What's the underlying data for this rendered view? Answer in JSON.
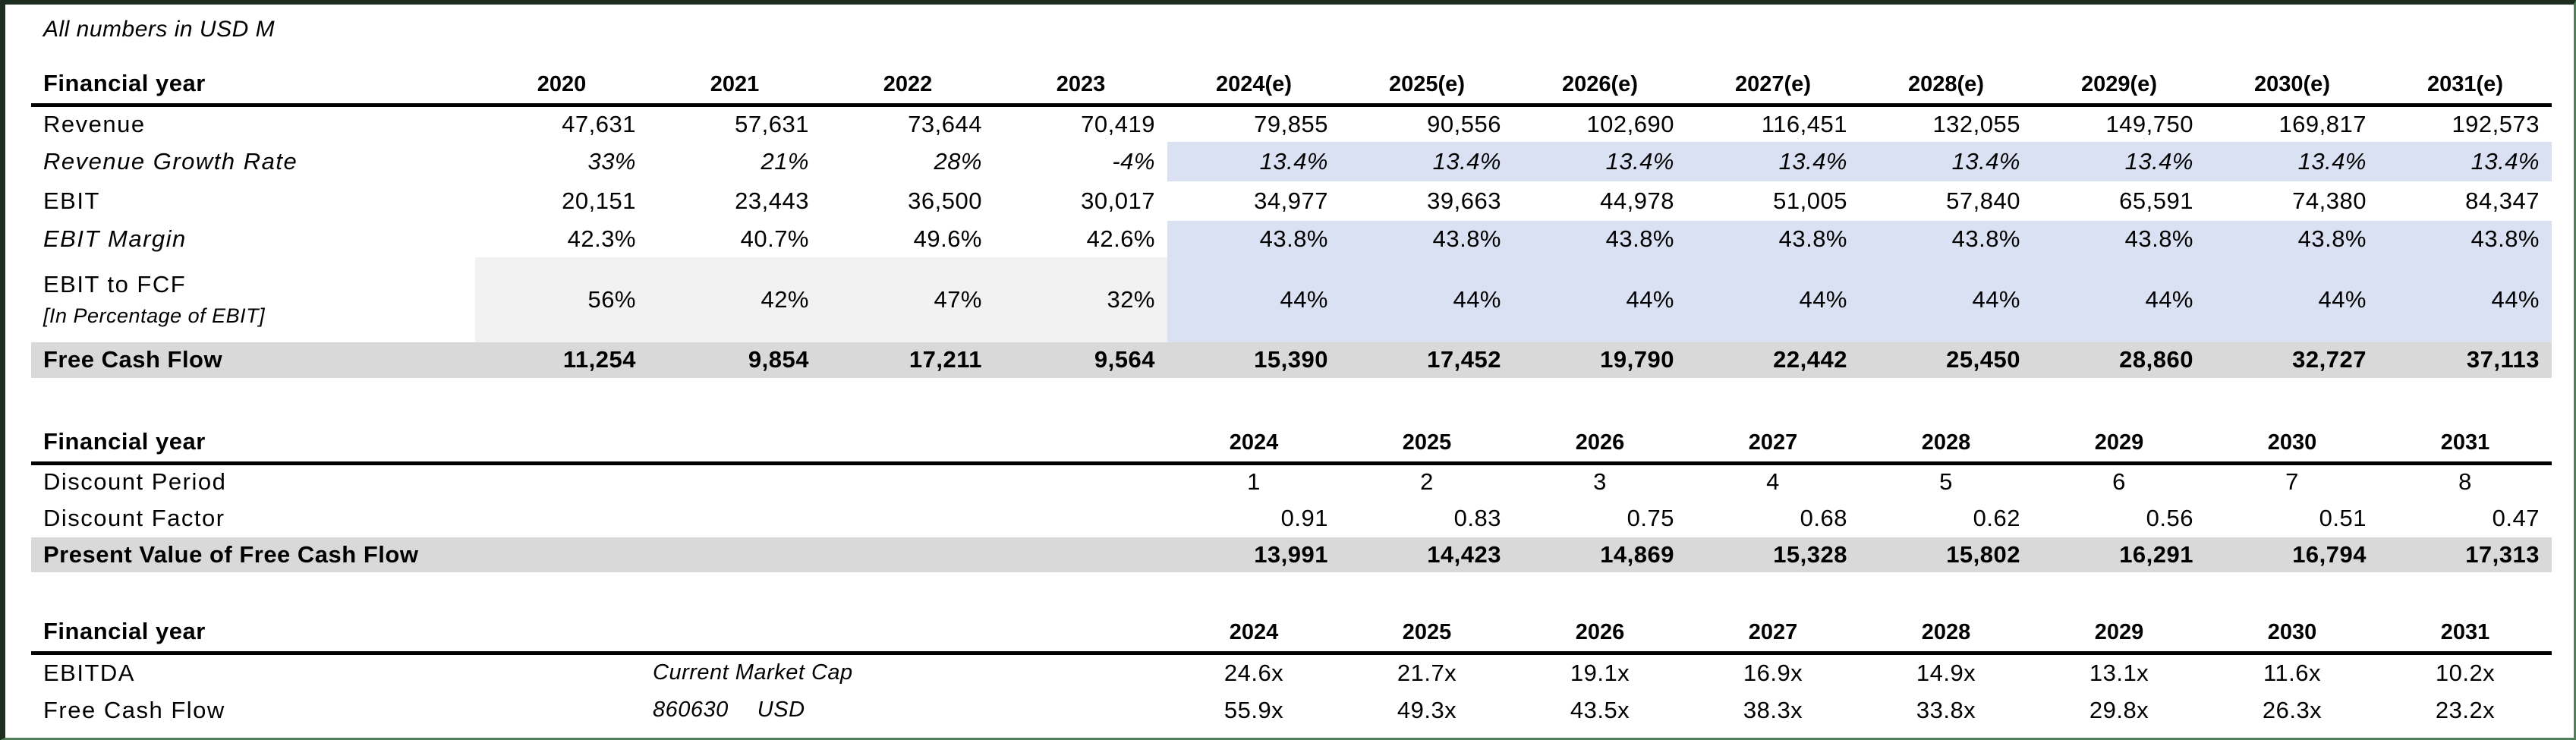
{
  "title": "All numbers in USD M",
  "colors": {
    "forecast_fill": "#d9e1f2",
    "historical_fill": "#f2f2f2",
    "result_row_fill": "#d9d9d9",
    "frame_green": "#527e5a",
    "header_rule": "#000000"
  },
  "table1": {
    "header_label": "Financial year",
    "years": [
      "2020",
      "2021",
      "2022",
      "2023",
      "2024(e)",
      "2025(e)",
      "2026(e)",
      "2027(e)",
      "2028(e)",
      "2029(e)",
      "2030(e)",
      "2031(e)"
    ],
    "rows": {
      "revenue": {
        "label": "Revenue",
        "values": [
          "47,631",
          "57,631",
          "73,644",
          "70,419",
          "79,855",
          "90,556",
          "102,690",
          "116,451",
          "132,055",
          "149,750",
          "169,817",
          "192,573"
        ]
      },
      "revenue_growth": {
        "label": "Revenue Growth Rate",
        "values": [
          "33%",
          "21%",
          "28%",
          "-4%",
          "13.4%",
          "13.4%",
          "13.4%",
          "13.4%",
          "13.4%",
          "13.4%",
          "13.4%",
          "13.4%"
        ]
      },
      "ebit": {
        "label": "EBIT",
        "values": [
          "20,151",
          "23,443",
          "36,500",
          "30,017",
          "34,977",
          "39,663",
          "44,978",
          "51,005",
          "57,840",
          "65,591",
          "74,380",
          "84,347"
        ]
      },
      "ebit_margin": {
        "label": "EBIT Margin",
        "values": [
          "42.3%",
          "40.7%",
          "49.6%",
          "42.6%",
          "43.8%",
          "43.8%",
          "43.8%",
          "43.8%",
          "43.8%",
          "43.8%",
          "43.8%",
          "43.8%"
        ]
      },
      "ebit_to_fcf": {
        "label": "EBIT to FCF",
        "label2": "[In Percentage of EBIT]",
        "values": [
          "56%",
          "42%",
          "47%",
          "32%",
          "44%",
          "44%",
          "44%",
          "44%",
          "44%",
          "44%",
          "44%",
          "44%"
        ]
      },
      "free_cash_flow": {
        "label": "Free Cash Flow",
        "values": [
          "11,254",
          "9,854",
          "17,211",
          "9,564",
          "15,390",
          "17,452",
          "19,790",
          "22,442",
          "25,450",
          "28,860",
          "32,727",
          "37,113"
        ]
      }
    }
  },
  "table2": {
    "header_label": "Financial year",
    "years": [
      "2024",
      "2025",
      "2026",
      "2027",
      "2028",
      "2029",
      "2030",
      "2031"
    ],
    "rows": {
      "discount_period": {
        "label": "Discount Period",
        "values": [
          "1",
          "2",
          "3",
          "4",
          "5",
          "6",
          "7",
          "8"
        ]
      },
      "discount_factor": {
        "label": "Discount Factor",
        "values": [
          "0.91",
          "0.83",
          "0.75",
          "0.68",
          "0.62",
          "0.56",
          "0.51",
          "0.47"
        ]
      },
      "pv_fcf": {
        "label": "Present Value of Free Cash Flow",
        "values": [
          "13,991",
          "14,423",
          "14,869",
          "15,328",
          "15,802",
          "16,291",
          "16,794",
          "17,313"
        ]
      }
    }
  },
  "table3": {
    "header_label": "Financial year",
    "years": [
      "2024",
      "2025",
      "2026",
      "2027",
      "2028",
      "2029",
      "2030",
      "2031"
    ],
    "market_cap_label": "Current Market Cap",
    "market_cap_value": "860630",
    "market_cap_currency": "USD",
    "rows": {
      "ebitda": {
        "label": "EBITDA",
        "values": [
          "24.6x",
          "21.7x",
          "19.1x",
          "16.9x",
          "14.9x",
          "13.1x",
          "11.6x",
          "10.2x"
        ]
      },
      "free_cash_flow": {
        "label": "Free Cash Flow",
        "values": [
          "55.9x",
          "49.3x",
          "43.5x",
          "38.3x",
          "33.8x",
          "29.8x",
          "26.3x",
          "23.2x"
        ]
      }
    }
  }
}
